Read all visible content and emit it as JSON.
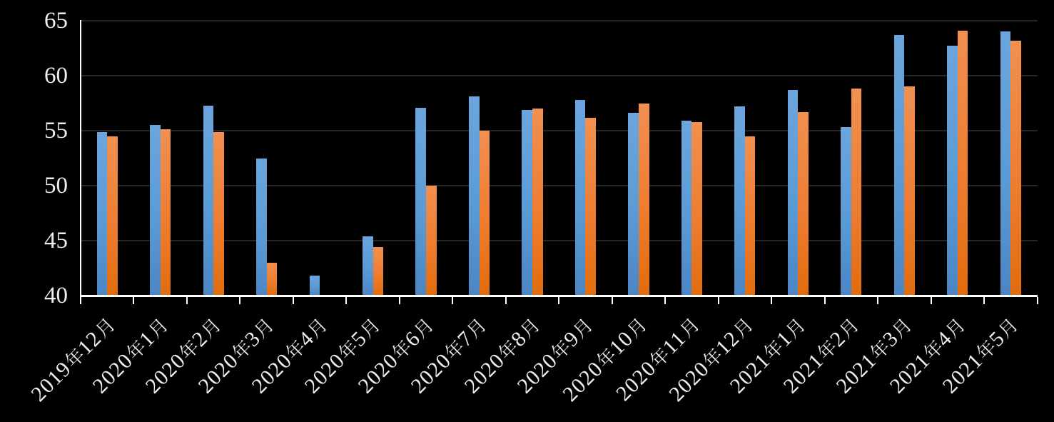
{
  "chart_data": {
    "type": "bar",
    "title": "",
    "categories": [
      "2019年12月",
      "2020年1月",
      "2020年2月",
      "2020年3月",
      "2020年4月",
      "2020年5月",
      "2020年6月",
      "2020年7月",
      "2020年8月",
      "2020年9月",
      "2020年10月",
      "2020年11月",
      "2020年12月",
      "2021年1月",
      "2021年2月",
      "2021年3月",
      "2021年4月",
      "2021年5月"
    ],
    "series": [
      {
        "name": "series-blue",
        "values": [
          54.9,
          55.5,
          57.3,
          52.5,
          41.8,
          45.4,
          57.1,
          58.1,
          56.9,
          57.8,
          56.6,
          55.9,
          57.2,
          58.7,
          55.3,
          63.7,
          62.7,
          64.0
        ],
        "color": "#5B9BD5",
        "gradient_top": "#6CA5DD",
        "gradient_bottom": "#4C85C4"
      },
      {
        "name": "series-orange",
        "values": [
          54.5,
          55.1,
          54.9,
          43.0,
          null,
          44.4,
          50.0,
          55.0,
          57.0,
          56.2,
          57.5,
          55.8,
          54.5,
          56.7,
          58.8,
          59.0,
          64.1,
          63.2
        ],
        "color": "#ED7D31",
        "gradient_top": "#F19050",
        "gradient_bottom": "#E26C0D"
      }
    ],
    "xlabel": "",
    "ylabel": "",
    "y_axis": {
      "min": 40,
      "max": 65,
      "step": 5,
      "tick_labels": [
        "40",
        "45",
        "50",
        "55",
        "60",
        "65"
      ]
    },
    "grid": true,
    "legend": false,
    "colors": {
      "background": "#000000",
      "gridline": "#262626",
      "axis_line": "#FFFFFF",
      "tick_label": "#F1EEE9"
    }
  }
}
